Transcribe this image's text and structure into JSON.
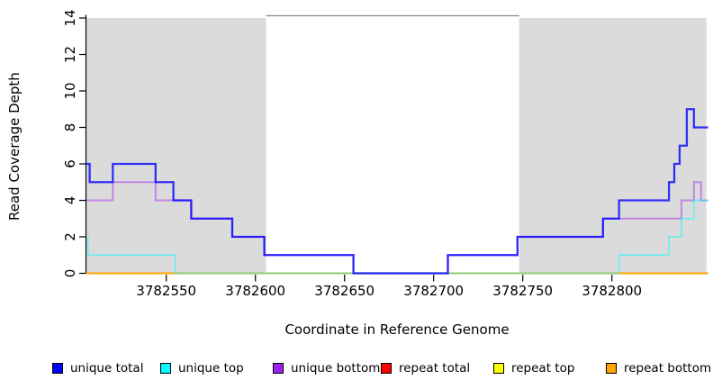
{
  "chart_data": {
    "type": "line",
    "subtype": "step",
    "title": "",
    "xlabel": "Coordinate in Reference Genome",
    "ylabel": "Read Coverage Depth",
    "xlim": [
      3782505,
      3782854
    ],
    "ylim": [
      0,
      14
    ],
    "x_ticks": [
      "3782550",
      "3782600",
      "3782650",
      "3782700",
      "3782750",
      "3782800"
    ],
    "y_ticks": [
      "0",
      "2",
      "4",
      "6",
      "8",
      "10",
      "12",
      "14"
    ],
    "grid": false,
    "shade_color": "#DBDBDB",
    "shaded_regions": [
      {
        "x0": 3782505,
        "x1": 3782606
      },
      {
        "x0": 3782748,
        "x1": 3782853
      }
    ],
    "series": [
      {
        "name": "repeat total",
        "color": "#EE0000",
        "opacity": 1,
        "width": 1.4,
        "points": [
          [
            3782505,
            0
          ],
          [
            3782854,
            0
          ]
        ]
      },
      {
        "name": "repeat top",
        "color": "#FFFF00",
        "opacity": 1,
        "width": 1.4,
        "points": [
          [
            3782505,
            0
          ],
          [
            3782854,
            0
          ]
        ]
      },
      {
        "name": "repeat bottom",
        "color": "#FFA500",
        "opacity": 1,
        "width": 2,
        "points": [
          [
            3782505,
            0
          ],
          [
            3782854,
            0
          ]
        ]
      },
      {
        "name": "unique bottom",
        "color": "#A020F0",
        "opacity": 0.45,
        "width": 2,
        "points": [
          [
            3782505,
            4
          ],
          [
            3782520,
            5
          ],
          [
            3782544,
            4
          ],
          [
            3782564,
            3
          ],
          [
            3782587,
            2
          ],
          [
            3782605,
            1
          ],
          [
            3782655,
            0
          ],
          [
            3782708,
            1
          ],
          [
            3782747,
            2
          ],
          [
            3782795,
            3
          ],
          [
            3782839,
            4
          ],
          [
            3782846,
            5
          ],
          [
            3782850,
            4
          ],
          [
            3782854,
            4
          ]
        ]
      },
      {
        "name": "unique top",
        "color": "#00FFFF",
        "opacity": 0.5,
        "width": 1.7,
        "points": [
          [
            3782505,
            2
          ],
          [
            3782506,
            1
          ],
          [
            3782555,
            0
          ],
          [
            3782804,
            1
          ],
          [
            3782832,
            2
          ],
          [
            3782839,
            3
          ],
          [
            3782846,
            4
          ],
          [
            3782854,
            4
          ]
        ]
      },
      {
        "name": "unique total",
        "color": "#0000FF",
        "opacity": 0.78,
        "width": 2.3,
        "points": [
          [
            3782505,
            6
          ],
          [
            3782507,
            5
          ],
          [
            3782520,
            6
          ],
          [
            3782544,
            5
          ],
          [
            3782554,
            4
          ],
          [
            3782564,
            3
          ],
          [
            3782587,
            2
          ],
          [
            3782605,
            1
          ],
          [
            3782655,
            0
          ],
          [
            3782708,
            1
          ],
          [
            3782747,
            2
          ],
          [
            3782795,
            3
          ],
          [
            3782804,
            4
          ],
          [
            3782832,
            5
          ],
          [
            3782835,
            6
          ],
          [
            3782838,
            7
          ],
          [
            3782842,
            9
          ],
          [
            3782846,
            8
          ],
          [
            3782854,
            8
          ]
        ]
      }
    ],
    "legend": {
      "position": "bottom",
      "items": [
        {
          "label": "unique total",
          "color": "#0000FF"
        },
        {
          "label": "unique top",
          "color": "#00FFFF"
        },
        {
          "label": "unique bottom",
          "color": "#A020F0"
        },
        {
          "label": "repeat total",
          "color": "#FF0000"
        },
        {
          "label": "repeat top",
          "color": "#FFFF00"
        },
        {
          "label": "repeat bottom",
          "color": "#FFA500"
        }
      ]
    }
  }
}
